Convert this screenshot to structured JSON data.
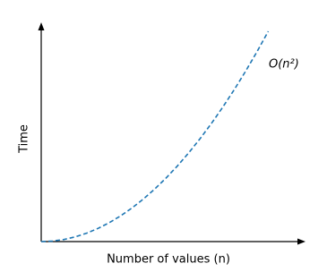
{
  "chart_data": {
    "type": "line",
    "x_label": "Number of values (n)",
    "y_label": "Time",
    "annotation": "O(n²)",
    "x": [
      0,
      0.5,
      1,
      1.5,
      2,
      2.5,
      3,
      3.5,
      4,
      4.5,
      5,
      5.5,
      6,
      6.5,
      7,
      7.5,
      8,
      8.5,
      9,
      9.5,
      10
    ],
    "series": [
      {
        "name": "O(n²)",
        "color": "#1f77b4",
        "values": [
          0,
          0.25,
          1,
          2.25,
          4,
          6.25,
          9,
          12.25,
          16,
          20.25,
          25,
          30.25,
          36,
          42.25,
          49,
          56.25,
          64,
          72.25,
          81,
          90.25,
          100
        ]
      }
    ],
    "xlim": [
      0,
      11.6
    ],
    "ylim": [
      0,
      103
    ],
    "line_style": "dashed"
  }
}
